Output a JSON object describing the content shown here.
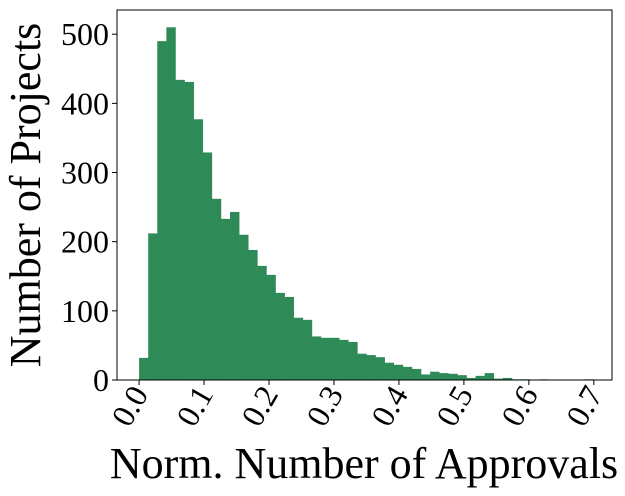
{
  "chart_data": {
    "type": "histogram",
    "x_label": "Norm. Number of Approvals",
    "y_label": "Number of Projects",
    "color": "#2e8b57",
    "bins": [
      0,
      0.014,
      0.028,
      0.042,
      0.056,
      0.07,
      0.084,
      0.098,
      0.112,
      0.126,
      0.14,
      0.154,
      0.168,
      0.182,
      0.196,
      0.21,
      0.224,
      0.238,
      0.252,
      0.266,
      0.28,
      0.294,
      0.308,
      0.322,
      0.336,
      0.35,
      0.364,
      0.378,
      0.392,
      0.406,
      0.42,
      0.434,
      0.448,
      0.462,
      0.476,
      0.49,
      0.504,
      0.518,
      0.532,
      0.546,
      0.56,
      0.574,
      0.588,
      0.602,
      0.616,
      0.63,
      0.644,
      0.658,
      0.672,
      0.686,
      0.7
    ],
    "counts": [
      32,
      212,
      490,
      510,
      434,
      431,
      377,
      329,
      262,
      233,
      243,
      210,
      188,
      165,
      152,
      126,
      120,
      90,
      87,
      63,
      61,
      61,
      58,
      55,
      38,
      36,
      33,
      25,
      22,
      19,
      16,
      8,
      12,
      10,
      9,
      7,
      3,
      6,
      10,
      2,
      3,
      1,
      1,
      0,
      1,
      0,
      0,
      0,
      0,
      1
    ],
    "xlim": [
      -0.034,
      0.728
    ],
    "ylim": [
      0,
      535
    ],
    "xticks": [
      {
        "value": 0,
        "label": "0.0"
      },
      0.1,
      0.2,
      0.3,
      0.4,
      0.5,
      0.6,
      0.7
    ],
    "yticks": [
      0,
      100,
      200,
      300,
      400,
      500
    ]
  }
}
